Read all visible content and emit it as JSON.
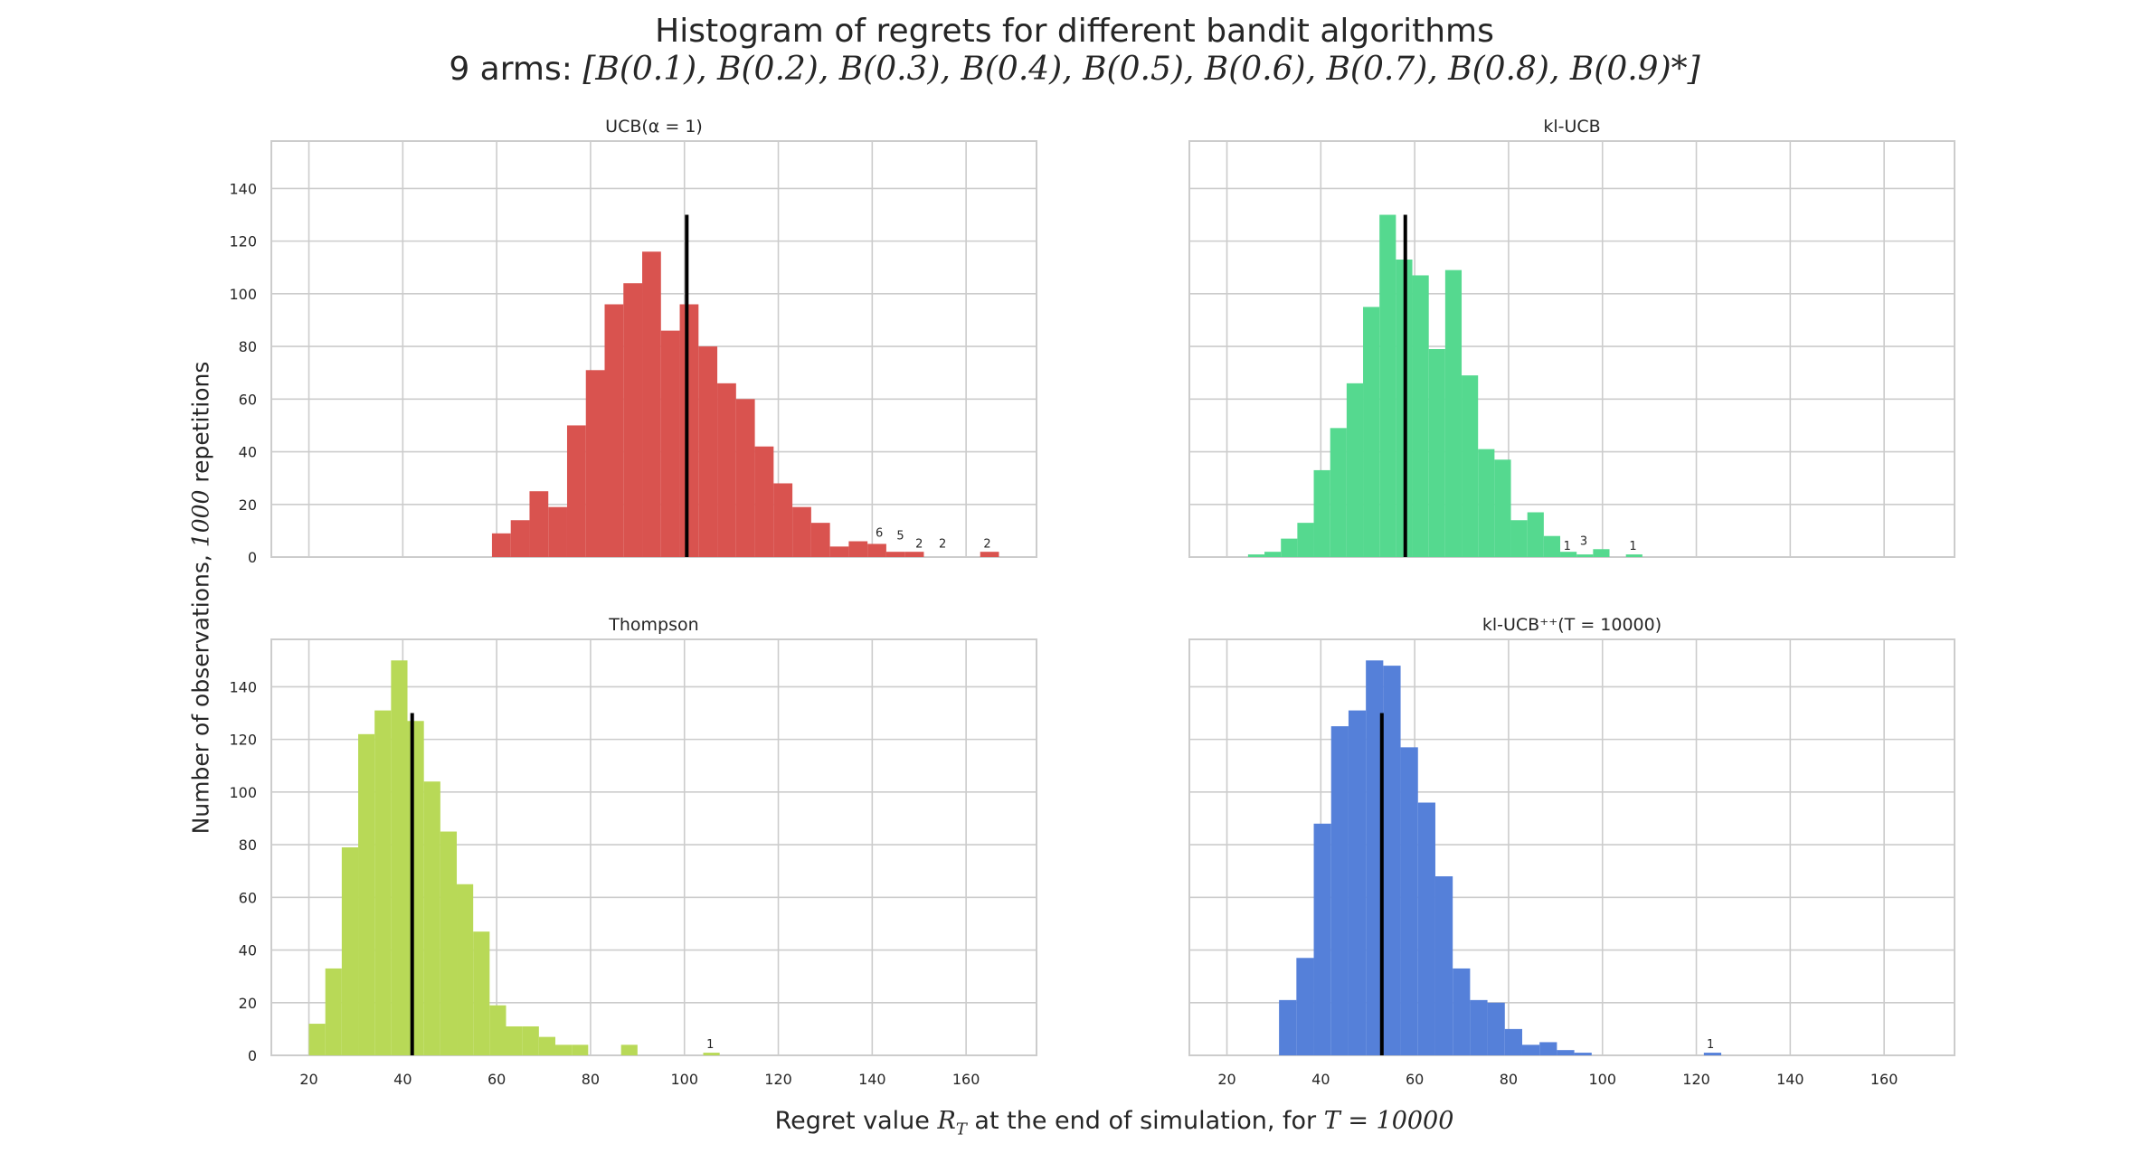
{
  "figure": {
    "title": "Histogram of regrets for different bandit algorithms",
    "subtitle_prefix": "9 arms: ",
    "subtitle_math": "[B(0.1), B(0.2), B(0.3), B(0.4), B(0.5), B(0.6), B(0.7), B(0.8), B(0.9)*]",
    "ylabel_text": "Number of observations, ",
    "ylabel_math": "1000",
    "ylabel_suffix": " repetitions",
    "xlabel_text": "Regret value ",
    "xlabel_math1": "R",
    "xlabel_math1_sub": "T",
    "xlabel_mid": " at the end of simulation, for ",
    "xlabel_math2": "T = 10000"
  },
  "colors": {
    "ucb": "#d9534f",
    "klucb": "#55d98f",
    "thompson": "#b8d957",
    "klucbpp": "#5580d9",
    "grid": "#cccccc",
    "axis_text": "#262626",
    "median_line": "#000000"
  },
  "chart_data": [
    {
      "type": "bar",
      "title": "UCB(α = 1)",
      "series_color_key": "ucb",
      "xlim": [
        12,
        175
      ],
      "ylim": [
        0,
        158
      ],
      "xticks": [
        20,
        40,
        60,
        80,
        100,
        120,
        140,
        160
      ],
      "yticks": [
        0,
        20,
        40,
        60,
        80,
        100,
        120,
        140
      ],
      "show_xtick_labels": false,
      "show_ytick_labels": true,
      "bin_width": 4.0,
      "bin_starts": [
        59,
        63,
        67,
        71,
        75,
        79,
        83,
        87,
        91,
        95,
        99,
        103,
        107,
        111,
        115,
        119,
        123,
        127,
        131,
        135,
        139,
        143,
        147,
        151,
        155,
        159,
        163,
        167
      ],
      "counts": [
        9,
        14,
        25,
        19,
        50,
        71,
        96,
        104,
        116,
        86,
        96,
        80,
        66,
        60,
        42,
        28,
        19,
        13,
        4,
        6,
        5,
        2,
        2,
        0,
        0,
        0,
        2,
        0
      ],
      "bar_labels": [
        {
          "x": 141.5,
          "y": 7,
          "text": "6"
        },
        {
          "x": 146,
          "y": 6,
          "text": "5"
        },
        {
          "x": 150,
          "y": 3,
          "text": "2"
        },
        {
          "x": 155,
          "y": 3,
          "text": "2"
        },
        {
          "x": 164.5,
          "y": 3,
          "text": "2"
        }
      ],
      "median": 100.5
    },
    {
      "type": "bar",
      "title": "kl-UCB",
      "series_color_key": "klucb",
      "xlim": [
        12,
        175
      ],
      "ylim": [
        0,
        158
      ],
      "xticks": [
        20,
        40,
        60,
        80,
        100,
        120,
        140,
        160
      ],
      "yticks": [
        0,
        20,
        40,
        60,
        80,
        100,
        120,
        140
      ],
      "show_xtick_labels": false,
      "show_ytick_labels": false,
      "bin_width": 3.5,
      "bin_starts": [
        24.5,
        28,
        31.5,
        35,
        38.5,
        42,
        45.5,
        49,
        52.5,
        56,
        59.5,
        63,
        66.5,
        70,
        73.5,
        77,
        80.5,
        84,
        87.5,
        91,
        94.5,
        98,
        101.5,
        105
      ],
      "counts": [
        1,
        2,
        7,
        13,
        33,
        49,
        66,
        95,
        130,
        113,
        107,
        79,
        109,
        69,
        41,
        37,
        14,
        17,
        8,
        2,
        1,
        3,
        0,
        1
      ],
      "bar_labels": [
        {
          "x": 92.5,
          "y": 2,
          "text": "1"
        },
        {
          "x": 96,
          "y": 4,
          "text": "3"
        },
        {
          "x": 106.5,
          "y": 2,
          "text": "1"
        }
      ],
      "median": 58
    },
    {
      "type": "bar",
      "title": "Thompson",
      "series_color_key": "thompson",
      "xlim": [
        12,
        175
      ],
      "ylim": [
        0,
        158
      ],
      "xticks": [
        20,
        40,
        60,
        80,
        100,
        120,
        140,
        160
      ],
      "yticks": [
        0,
        20,
        40,
        60,
        80,
        100,
        120,
        140
      ],
      "show_xtick_labels": true,
      "show_ytick_labels": true,
      "bin_width": 3.5,
      "bin_starts": [
        20,
        23.5,
        27,
        30.5,
        34,
        37.5,
        41,
        44.5,
        48,
        51.5,
        55,
        58.5,
        62,
        65.5,
        69,
        72.5,
        76,
        79.5,
        83,
        86.5,
        90,
        93.5,
        97,
        100.5,
        104
      ],
      "counts": [
        12,
        33,
        79,
        122,
        131,
        150,
        127,
        104,
        85,
        65,
        47,
        19,
        11,
        11,
        7,
        4,
        4,
        0,
        0,
        4,
        0,
        0,
        0,
        0,
        1
      ],
      "bar_labels": [
        {
          "x": 105.5,
          "y": 2,
          "text": "1"
        }
      ],
      "median": 42
    },
    {
      "type": "bar",
      "title": "kl-UCB⁺⁺(T = 10000)",
      "series_color_key": "klucbpp",
      "xlim": [
        12,
        175
      ],
      "ylim": [
        0,
        158
      ],
      "xticks": [
        20,
        40,
        60,
        80,
        100,
        120,
        140,
        160
      ],
      "yticks": [
        0,
        20,
        40,
        60,
        80,
        100,
        120,
        140
      ],
      "show_xtick_labels": true,
      "show_ytick_labels": false,
      "bin_width": 3.7,
      "bin_starts": [
        31.1,
        34.8,
        38.5,
        42.2,
        45.9,
        49.6,
        53.3,
        57.0,
        60.7,
        64.4,
        68.1,
        71.8,
        75.5,
        79.2,
        82.9,
        86.6,
        90.3,
        94.0,
        121.6
      ],
      "counts": [
        21,
        37,
        88,
        125,
        131,
        150,
        148,
        117,
        96,
        68,
        33,
        21,
        20,
        10,
        4,
        5,
        2,
        1,
        1
      ],
      "bar_labels": [
        {
          "x": 123,
          "y": 2,
          "text": "1"
        }
      ],
      "median": 53
    }
  ]
}
